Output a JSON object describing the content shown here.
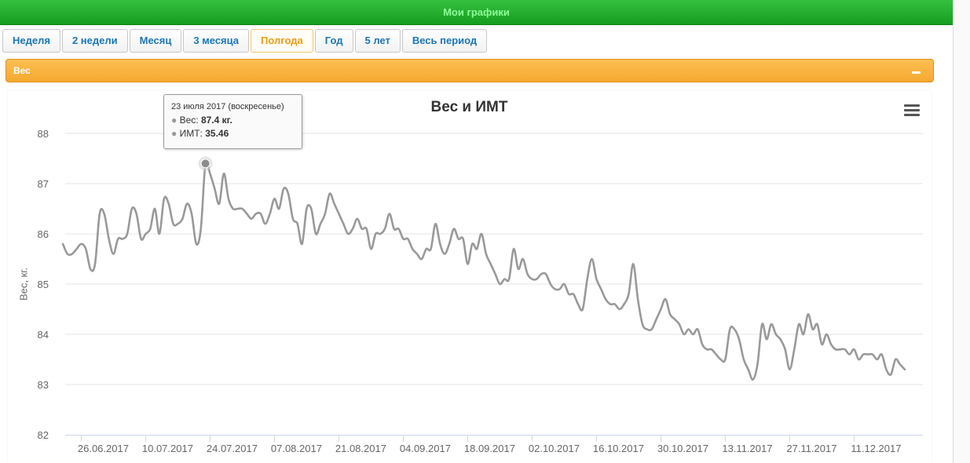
{
  "header": {
    "title": "Мои графики"
  },
  "tabs": [
    {
      "label": "Неделя",
      "active": false
    },
    {
      "label": "2 недели",
      "active": false
    },
    {
      "label": "Месяц",
      "active": false
    },
    {
      "label": "3 месяца",
      "active": false
    },
    {
      "label": "Полгода",
      "active": true
    },
    {
      "label": "Год",
      "active": false
    },
    {
      "label": "5 лет",
      "active": false
    },
    {
      "label": "Весь период",
      "active": false
    }
  ],
  "panel": {
    "title": "Вес"
  },
  "tooltip": {
    "date": "23 июля 2017 (воскресенье)",
    "weight_label": "Вес:",
    "weight_value": "87.4 кг.",
    "bmi_label": "ИМТ:",
    "bmi_value": "35.46"
  },
  "colors": {
    "header_green": "#1ea829",
    "header_text": "#8ffe98",
    "panel_orange": "#f7ac35",
    "tab_text": "#1b76b6",
    "tab_active_text": "#ef9b0f",
    "series_line": "#999999"
  },
  "chart_data": {
    "type": "line",
    "title": "Вес и ИМТ",
    "ylabel": "Вес, кг.",
    "xlabel": "",
    "ylim": [
      82,
      88
    ],
    "yticks": [
      "82",
      "83",
      "84",
      "85",
      "86",
      "87",
      "88"
    ],
    "xticks": [
      "26.06.2017",
      "10.07.2017",
      "24.07.2017",
      "07.08.2017",
      "21.08.2017",
      "04.09.2017",
      "18.09.2017",
      "02.10.2017",
      "16.10.2017",
      "30.10.2017",
      "13.11.2017",
      "27.11.2017",
      "11.12.2017"
    ],
    "x_start": "2017-06-22",
    "x_end": "2017-12-22",
    "highlight_date": "2017-07-23",
    "grid": true,
    "series": [
      {
        "values": [
          [
            "2017-06-22",
            85.8
          ],
          [
            "2017-06-23",
            85.6
          ],
          [
            "2017-06-24",
            85.6
          ],
          [
            "2017-06-25",
            85.7
          ],
          [
            "2017-06-26",
            85.8
          ],
          [
            "2017-06-27",
            85.7
          ],
          [
            "2017-06-28",
            85.3
          ],
          [
            "2017-06-29",
            85.4
          ],
          [
            "2017-06-30",
            86.4
          ],
          [
            "2017-07-01",
            86.4
          ],
          [
            "2017-07-02",
            85.9
          ],
          [
            "2017-07-03",
            85.6
          ],
          [
            "2017-07-04",
            85.9
          ],
          [
            "2017-07-05",
            85.9
          ],
          [
            "2017-07-06",
            86.0
          ],
          [
            "2017-07-07",
            86.5
          ],
          [
            "2017-07-08",
            86.4
          ],
          [
            "2017-07-09",
            85.9
          ],
          [
            "2017-07-10",
            86.0
          ],
          [
            "2017-07-11",
            86.1
          ],
          [
            "2017-07-12",
            86.5
          ],
          [
            "2017-07-13",
            86.0
          ],
          [
            "2017-07-14",
            86.7
          ],
          [
            "2017-07-15",
            86.6
          ],
          [
            "2017-07-16",
            86.2
          ],
          [
            "2017-07-17",
            86.2
          ],
          [
            "2017-07-18",
            86.3
          ],
          [
            "2017-07-19",
            86.6
          ],
          [
            "2017-07-20",
            86.4
          ],
          [
            "2017-07-21",
            85.8
          ],
          [
            "2017-07-22",
            86.1
          ],
          [
            "2017-07-23",
            87.4
          ],
          [
            "2017-07-24",
            87.2
          ],
          [
            "2017-07-25",
            86.9
          ],
          [
            "2017-07-26",
            86.6
          ],
          [
            "2017-07-27",
            87.2
          ],
          [
            "2017-07-28",
            86.7
          ],
          [
            "2017-07-29",
            86.5
          ],
          [
            "2017-07-30",
            86.5
          ],
          [
            "2017-07-31",
            86.5
          ],
          [
            "2017-08-01",
            86.4
          ],
          [
            "2017-08-02",
            86.3
          ],
          [
            "2017-08-03",
            86.4
          ],
          [
            "2017-08-04",
            86.4
          ],
          [
            "2017-08-05",
            86.2
          ],
          [
            "2017-08-06",
            86.4
          ],
          [
            "2017-08-07",
            86.7
          ],
          [
            "2017-08-08",
            86.5
          ],
          [
            "2017-08-09",
            86.9
          ],
          [
            "2017-08-10",
            86.8
          ],
          [
            "2017-08-11",
            86.3
          ],
          [
            "2017-08-12",
            86.2
          ],
          [
            "2017-08-13",
            85.8
          ],
          [
            "2017-08-14",
            86.5
          ],
          [
            "2017-08-15",
            86.5
          ],
          [
            "2017-08-16",
            86.0
          ],
          [
            "2017-08-17",
            86.2
          ],
          [
            "2017-08-18",
            86.4
          ],
          [
            "2017-08-19",
            86.8
          ],
          [
            "2017-08-20",
            86.6
          ],
          [
            "2017-08-21",
            86.4
          ],
          [
            "2017-08-22",
            86.2
          ],
          [
            "2017-08-23",
            86.0
          ],
          [
            "2017-08-24",
            86.1
          ],
          [
            "2017-08-25",
            86.3
          ],
          [
            "2017-08-26",
            86.1
          ],
          [
            "2017-08-27",
            86.1
          ],
          [
            "2017-08-28",
            85.7
          ],
          [
            "2017-08-29",
            86.0
          ],
          [
            "2017-08-30",
            86.0
          ],
          [
            "2017-08-31",
            86.1
          ],
          [
            "2017-09-01",
            86.4
          ],
          [
            "2017-09-02",
            86.1
          ],
          [
            "2017-09-03",
            86.1
          ],
          [
            "2017-09-04",
            85.9
          ],
          [
            "2017-09-05",
            85.9
          ],
          [
            "2017-09-06",
            85.7
          ],
          [
            "2017-09-07",
            85.6
          ],
          [
            "2017-09-08",
            85.5
          ],
          [
            "2017-09-09",
            85.7
          ],
          [
            "2017-09-10",
            85.7
          ],
          [
            "2017-09-11",
            86.2
          ],
          [
            "2017-09-12",
            85.8
          ],
          [
            "2017-09-13",
            85.6
          ],
          [
            "2017-09-14",
            85.8
          ],
          [
            "2017-09-15",
            86.1
          ],
          [
            "2017-09-16",
            85.9
          ],
          [
            "2017-09-17",
            85.9
          ],
          [
            "2017-09-18",
            85.4
          ],
          [
            "2017-09-19",
            85.8
          ],
          [
            "2017-09-20",
            85.7
          ],
          [
            "2017-09-21",
            86.0
          ],
          [
            "2017-09-22",
            85.6
          ],
          [
            "2017-09-23",
            85.4
          ],
          [
            "2017-09-24",
            85.2
          ],
          [
            "2017-09-25",
            85.0
          ],
          [
            "2017-09-26",
            85.1
          ],
          [
            "2017-09-27",
            85.1
          ],
          [
            "2017-09-28",
            85.7
          ],
          [
            "2017-09-29",
            85.3
          ],
          [
            "2017-09-30",
            85.5
          ],
          [
            "2017-10-01",
            85.2
          ],
          [
            "2017-10-02",
            85.1
          ],
          [
            "2017-10-03",
            85.1
          ],
          [
            "2017-10-04",
            85.2
          ],
          [
            "2017-10-05",
            85.2
          ],
          [
            "2017-10-06",
            85.0
          ],
          [
            "2017-10-07",
            84.9
          ],
          [
            "2017-10-08",
            84.9
          ],
          [
            "2017-10-09",
            85.0
          ],
          [
            "2017-10-10",
            84.8
          ],
          [
            "2017-10-11",
            84.8
          ],
          [
            "2017-10-12",
            84.6
          ],
          [
            "2017-10-13",
            84.5
          ],
          [
            "2017-10-14",
            85.1
          ],
          [
            "2017-10-15",
            85.5
          ],
          [
            "2017-10-16",
            85.1
          ],
          [
            "2017-10-17",
            84.9
          ],
          [
            "2017-10-18",
            84.7
          ],
          [
            "2017-10-19",
            84.6
          ],
          [
            "2017-10-20",
            84.6
          ],
          [
            "2017-10-21",
            84.5
          ],
          [
            "2017-10-22",
            84.6
          ],
          [
            "2017-10-23",
            84.8
          ],
          [
            "2017-10-24",
            85.4
          ],
          [
            "2017-10-25",
            84.7
          ],
          [
            "2017-10-26",
            84.2
          ],
          [
            "2017-10-27",
            84.1
          ],
          [
            "2017-10-28",
            84.1
          ],
          [
            "2017-10-29",
            84.3
          ],
          [
            "2017-10-30",
            84.5
          ],
          [
            "2017-10-31",
            84.7
          ],
          [
            "2017-11-01",
            84.4
          ],
          [
            "2017-11-02",
            84.3
          ],
          [
            "2017-11-03",
            84.2
          ],
          [
            "2017-11-04",
            84.0
          ],
          [
            "2017-11-05",
            84.1
          ],
          [
            "2017-11-06",
            84.0
          ],
          [
            "2017-11-07",
            84.1
          ],
          [
            "2017-11-08",
            83.8
          ],
          [
            "2017-11-09",
            83.7
          ],
          [
            "2017-11-10",
            83.7
          ],
          [
            "2017-11-11",
            83.6
          ],
          [
            "2017-11-12",
            83.5
          ],
          [
            "2017-11-13",
            83.5
          ],
          [
            "2017-11-14",
            84.1
          ],
          [
            "2017-11-15",
            84.1
          ],
          [
            "2017-11-16",
            83.9
          ],
          [
            "2017-11-17",
            83.5
          ],
          [
            "2017-11-18",
            83.3
          ],
          [
            "2017-11-19",
            83.1
          ],
          [
            "2017-11-20",
            83.4
          ],
          [
            "2017-11-21",
            84.2
          ],
          [
            "2017-11-22",
            83.9
          ],
          [
            "2017-11-23",
            84.2
          ],
          [
            "2017-11-24",
            84.0
          ],
          [
            "2017-11-25",
            83.9
          ],
          [
            "2017-11-26",
            83.7
          ],
          [
            "2017-11-27",
            83.3
          ],
          [
            "2017-11-28",
            83.7
          ],
          [
            "2017-11-29",
            84.2
          ],
          [
            "2017-11-30",
            84.0
          ],
          [
            "2017-12-01",
            84.4
          ],
          [
            "2017-12-02",
            84.1
          ],
          [
            "2017-12-03",
            84.2
          ],
          [
            "2017-12-04",
            83.8
          ],
          [
            "2017-12-05",
            84.0
          ],
          [
            "2017-12-06",
            83.8
          ],
          [
            "2017-12-07",
            83.7
          ],
          [
            "2017-12-08",
            83.7
          ],
          [
            "2017-12-09",
            83.7
          ],
          [
            "2017-12-10",
            83.6
          ],
          [
            "2017-12-11",
            83.7
          ],
          [
            "2017-12-12",
            83.5
          ],
          [
            "2017-12-13",
            83.6
          ],
          [
            "2017-12-14",
            83.6
          ],
          [
            "2017-12-15",
            83.6
          ],
          [
            "2017-12-16",
            83.5
          ],
          [
            "2017-12-17",
            83.6
          ],
          [
            "2017-12-18",
            83.3
          ],
          [
            "2017-12-19",
            83.2
          ],
          [
            "2017-12-20",
            83.5
          ],
          [
            "2017-12-21",
            83.4
          ],
          [
            "2017-12-22",
            83.3
          ]
        ]
      }
    ]
  }
}
